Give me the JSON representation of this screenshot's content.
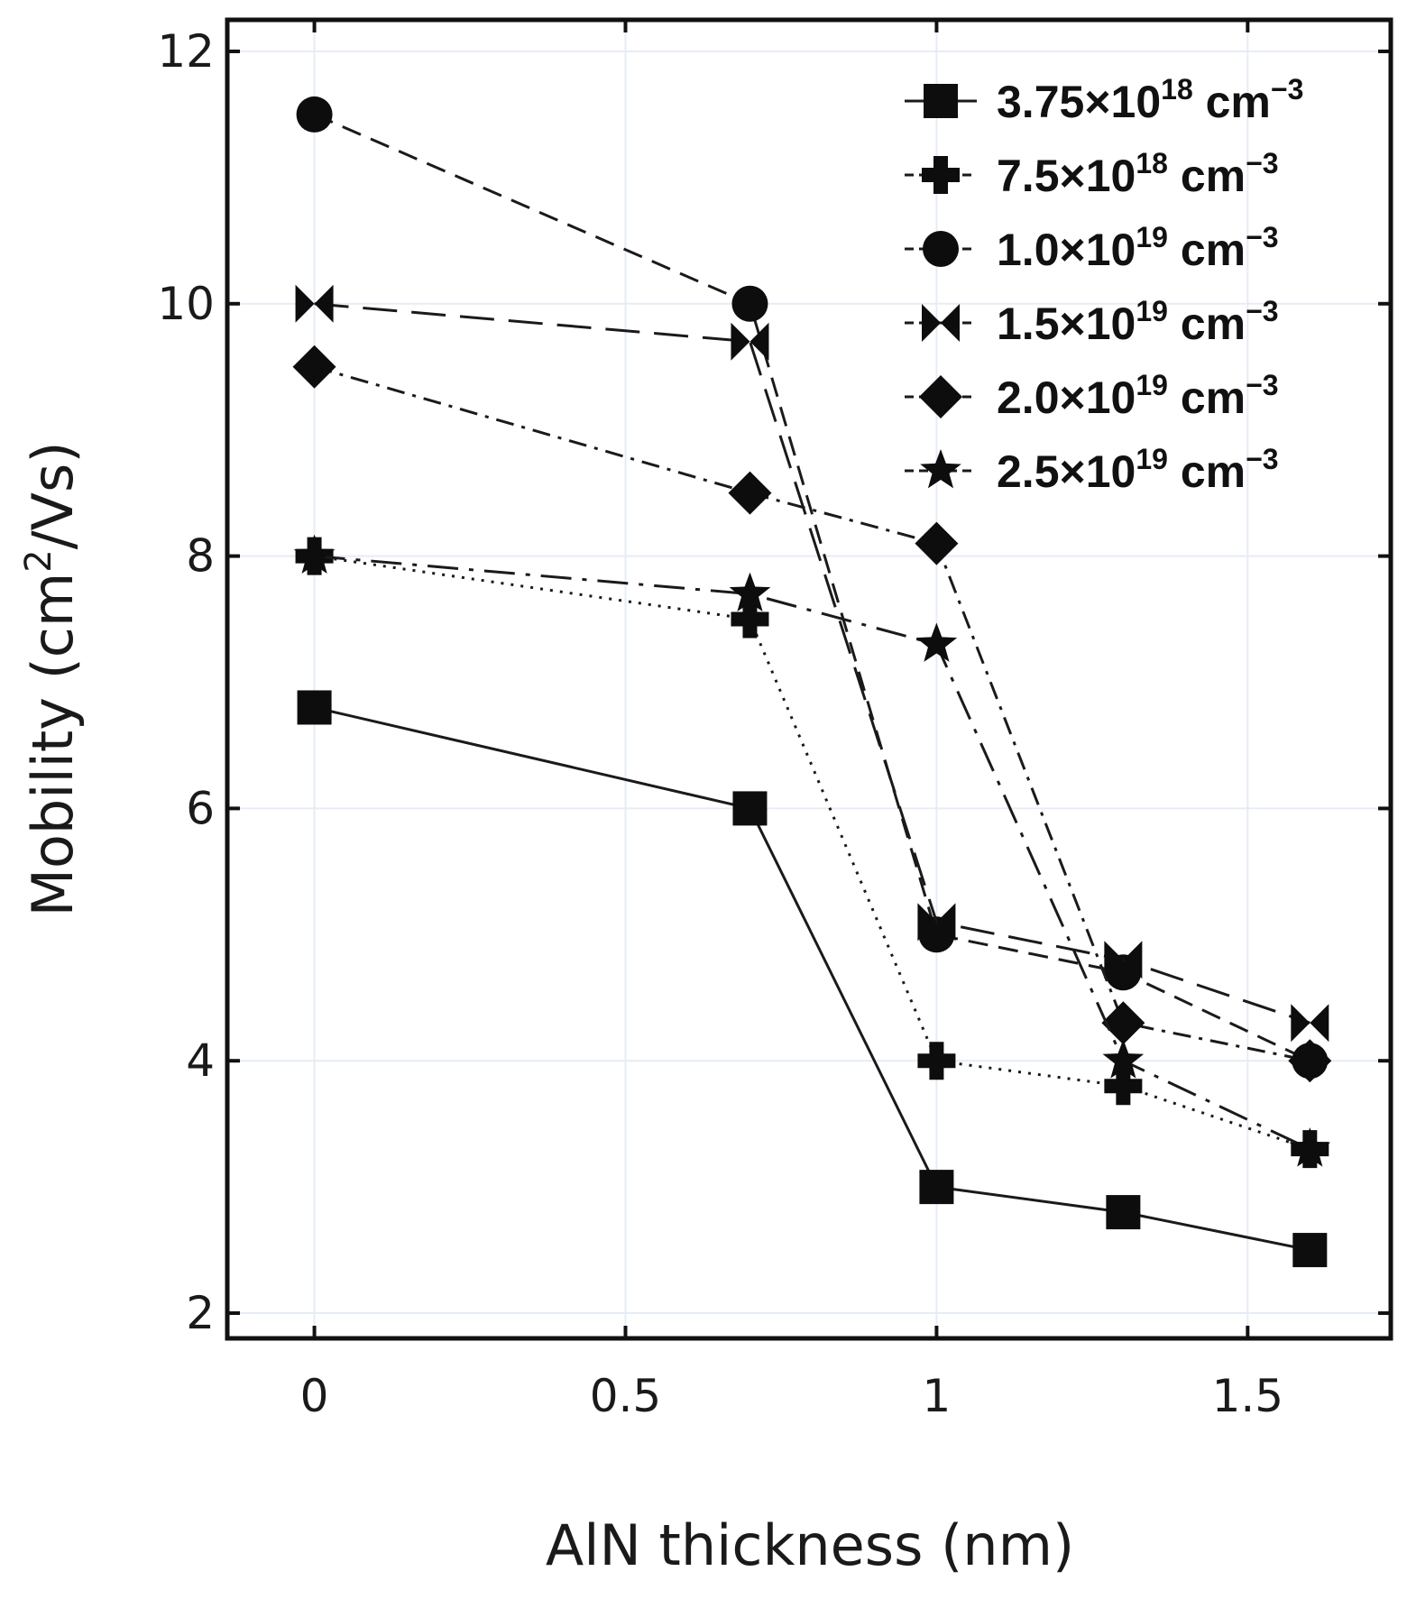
{
  "chart_data": {
    "type": "line",
    "title": "",
    "xlabel": "AlN thickness (nm)",
    "ylabel_parts": [
      "Mobility (cm",
      "2",
      "/Vs)"
    ],
    "xlim": [
      -0.14,
      1.73
    ],
    "ylim": [
      1.8,
      12.25
    ],
    "x": [
      0,
      0.7,
      1,
      1.3,
      1.6
    ],
    "x_ticks": [
      0,
      0.5,
      1,
      1.5
    ],
    "x_tick_labels": [
      "0",
      "0.5",
      "1",
      "1.5"
    ],
    "y_ticks": [
      2,
      4,
      6,
      8,
      10,
      12
    ],
    "y_tick_labels": [
      "2",
      "4",
      "6",
      "8",
      "10",
      "12"
    ],
    "grid": true,
    "legend_position": "top-right",
    "series": [
      {
        "name": "3.75×10^18 cm^-3",
        "label_mantissa": "3.75×10",
        "label_exp": "18",
        "label_unit": " cm",
        "label_unit_exp": "−3",
        "marker": "square",
        "dash": "solid",
        "values": [
          6.8,
          6.0,
          3.0,
          2.8,
          2.5
        ]
      },
      {
        "name": "7.5×10^18 cm^-3",
        "label_mantissa": "7.5×10",
        "label_exp": "18",
        "label_unit": " cm",
        "label_unit_exp": "−3",
        "marker": "plus",
        "dash": "dotted",
        "values": [
          8.0,
          7.5,
          4.0,
          3.8,
          3.3
        ]
      },
      {
        "name": "1.0×10^19 cm^-3",
        "label_mantissa": "1.0×10",
        "label_exp": "19",
        "label_unit": " cm",
        "label_unit_exp": "−3",
        "marker": "circle",
        "dash": "dashed",
        "values": [
          11.5,
          10.0,
          5.0,
          4.7,
          4.0
        ]
      },
      {
        "name": "1.5×10^19 cm^-3",
        "label_mantissa": "1.5×10",
        "label_exp": "19",
        "label_unit": " cm",
        "label_unit_exp": "−3",
        "marker": "bowtie",
        "dash": "long-dashed",
        "values": [
          10.0,
          9.7,
          5.1,
          4.8,
          4.3
        ]
      },
      {
        "name": "2.0×10^19 cm^-3",
        "label_mantissa": "2.0×10",
        "label_exp": "19",
        "label_unit": " cm",
        "label_unit_exp": "−3",
        "marker": "diamond",
        "dash": "dash-dot",
        "values": [
          9.5,
          8.5,
          8.1,
          4.3,
          4.0
        ]
      },
      {
        "name": "2.5×10^19 cm^-3",
        "label_mantissa": "2.5×10",
        "label_exp": "19",
        "label_unit": " cm",
        "label_unit_exp": "−3",
        "marker": "star",
        "dash": "long-dash-dot",
        "values": [
          8.0,
          7.7,
          7.3,
          4.0,
          3.3
        ]
      }
    ]
  }
}
